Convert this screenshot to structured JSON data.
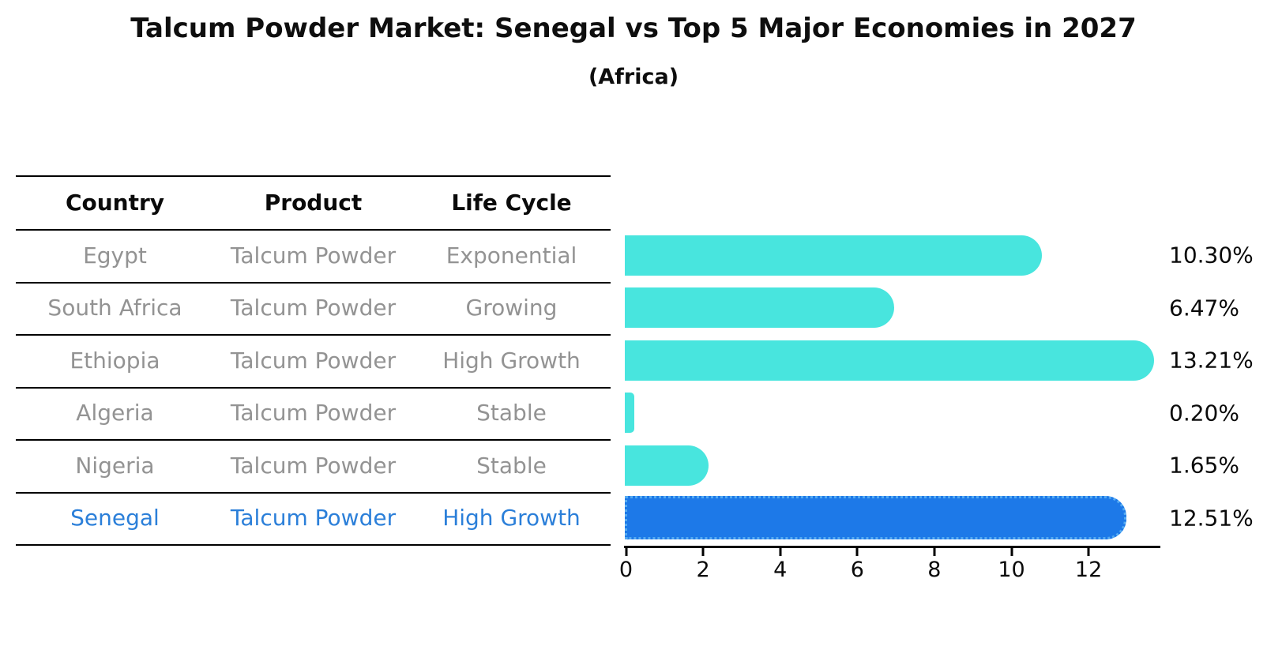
{
  "title": "Talcum Powder Market: Senegal vs Top 5 Major Economies in 2027",
  "subtitle": "(Africa)",
  "table": {
    "headers": [
      "Country",
      "Product",
      "Life Cycle"
    ],
    "rows": [
      {
        "country": "Egypt",
        "product": "Talcum Powder",
        "life_cycle": "Exponential"
      },
      {
        "country": "South Africa",
        "product": "Talcum Powder",
        "life_cycle": "Growing"
      },
      {
        "country": "Ethiopia",
        "product": "Talcum Powder",
        "life_cycle": "High Growth"
      },
      {
        "country": "Algeria",
        "product": "Talcum Powder",
        "life_cycle": "Stable"
      },
      {
        "country": "Nigeria",
        "product": "Talcum Powder",
        "life_cycle": "Stable"
      },
      {
        "country": "Senegal",
        "product": "Talcum Powder",
        "life_cycle": "High Growth"
      }
    ]
  },
  "chart_data": {
    "type": "bar",
    "orientation": "horizontal",
    "categories": [
      "Egypt",
      "South Africa",
      "Ethiopia",
      "Algeria",
      "Nigeria",
      "Senegal"
    ],
    "values": [
      10.3,
      6.47,
      13.21,
      0.2,
      1.65,
      12.51
    ],
    "value_labels": [
      "10.30%",
      "6.47%",
      "13.21%",
      "0.20%",
      "1.65%",
      "12.51%"
    ],
    "unit": "percent",
    "xticks": [
      "0",
      "2",
      "4",
      "6",
      "8",
      "10",
      "12"
    ],
    "xtick_values": [
      0,
      2,
      4,
      6,
      8,
      10,
      12
    ],
    "xlim": [
      0,
      13.9
    ],
    "grid": false,
    "legend": false,
    "highlight_index": 5,
    "colors": {
      "bar": "#48e5de",
      "highlight_bar": "#1d79e8",
      "highlight_edge": "#55abf2",
      "table_text_gray": "#939393",
      "highlight_text": "#2b7fd9",
      "axis": "#000000"
    }
  }
}
